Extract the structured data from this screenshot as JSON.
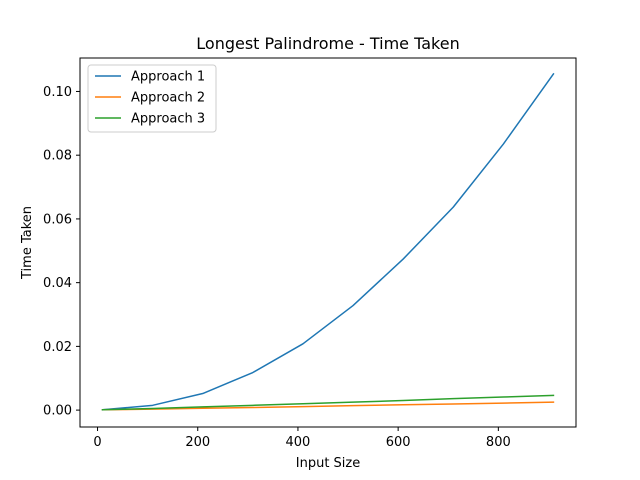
{
  "chart_data": {
    "type": "line",
    "title": "Longest Palindrome - Time Taken",
    "xlabel": "Input Size",
    "ylabel": "Time Taken",
    "xlim": [
      -35,
      955
    ],
    "ylim": [
      -0.0053,
      0.1105
    ],
    "xticks": [
      0,
      200,
      400,
      600,
      800
    ],
    "yticks": [
      0.0,
      0.02,
      0.04,
      0.06,
      0.08,
      0.1
    ],
    "xtick_labels": [
      "0",
      "200",
      "400",
      "600",
      "800"
    ],
    "ytick_labels": [
      "0.00",
      "0.02",
      "0.04",
      "0.06",
      "0.08",
      "0.10"
    ],
    "grid": false,
    "legend": "top-left",
    "x": [
      10,
      110,
      210,
      310,
      410,
      510,
      610,
      710,
      810,
      910
    ],
    "series": [
      {
        "name": "Approach 1",
        "color": "#1f77b4",
        "values": [
          0.0001,
          0.0015,
          0.0052,
          0.0118,
          0.0208,
          0.0328,
          0.0474,
          0.0637,
          0.0835,
          0.1055
        ]
      },
      {
        "name": "Approach 2",
        "color": "#ff7f0e",
        "values": [
          0.0001,
          0.0003,
          0.0006,
          0.0008,
          0.0011,
          0.0014,
          0.0017,
          0.0019,
          0.0022,
          0.0025
        ]
      },
      {
        "name": "Approach 3",
        "color": "#2ca02c",
        "values": [
          0.0001,
          0.0005,
          0.001,
          0.0015,
          0.002,
          0.0025,
          0.003,
          0.0036,
          0.0041,
          0.0046
        ]
      }
    ]
  }
}
